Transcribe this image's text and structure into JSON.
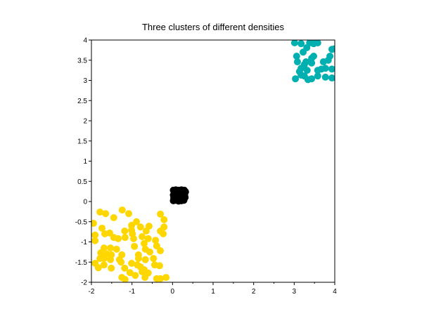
{
  "chart_data": {
    "type": "scatter",
    "title": "Three clusters of different densities",
    "xlabel": "",
    "ylabel": "",
    "xlim": [
      -2,
      4
    ],
    "ylim": [
      -2,
      4
    ],
    "xticks": [
      "-2",
      "-1",
      "0",
      "1",
      "2",
      "3",
      "4"
    ],
    "yticks": [
      "-2",
      "-1.5",
      "-1",
      "-0.5",
      "0",
      "0.5",
      "1",
      "1.5",
      "2",
      "2.5",
      "3",
      "3.5",
      "4"
    ],
    "grid": false,
    "series": [
      {
        "color": "#ffd700",
        "points": [
          [
            -1.79,
            -0.26
          ],
          [
            -1.65,
            -0.3
          ],
          [
            -1.45,
            -0.4
          ],
          [
            -1.24,
            -0.21
          ],
          [
            -1.08,
            -0.3
          ],
          [
            -0.89,
            -0.5
          ],
          [
            -0.3,
            -0.31
          ],
          [
            -0.21,
            -0.45
          ],
          [
            -1.95,
            -0.54
          ],
          [
            -1.74,
            -0.66
          ],
          [
            -1.67,
            -0.8
          ],
          [
            -1.55,
            -0.78
          ],
          [
            -1.18,
            -0.73
          ],
          [
            -1.01,
            -0.59
          ],
          [
            -1.01,
            -0.71
          ],
          [
            -0.79,
            -0.63
          ],
          [
            -0.58,
            -0.61
          ],
          [
            -0.65,
            -0.73
          ],
          [
            -0.3,
            -0.73
          ],
          [
            -0.21,
            -0.63
          ],
          [
            -1.91,
            -0.83
          ],
          [
            -1.45,
            -0.89
          ],
          [
            -1.34,
            -0.92
          ],
          [
            -1.17,
            -0.89
          ],
          [
            -0.99,
            -0.8
          ],
          [
            -0.96,
            -0.92
          ],
          [
            -0.75,
            -0.87
          ],
          [
            -0.6,
            -0.92
          ],
          [
            -0.42,
            -0.96
          ],
          [
            -0.23,
            -0.8
          ],
          [
            -1.91,
            -0.97
          ],
          [
            -1.69,
            -1.15
          ],
          [
            -1.53,
            -1.15
          ],
          [
            -1.38,
            -1.18
          ],
          [
            -0.94,
            -1.11
          ],
          [
            -0.7,
            -1.04
          ],
          [
            -0.67,
            -1.18
          ],
          [
            -0.39,
            -1.1
          ],
          [
            -0.3,
            -1.22
          ],
          [
            -1.77,
            -1.27
          ],
          [
            -1.62,
            -1.3
          ],
          [
            -1.51,
            -1.32
          ],
          [
            -1.25,
            -1.32
          ],
          [
            -0.84,
            -1.32
          ],
          [
            -0.56,
            -1.25
          ],
          [
            -1.79,
            -1.41
          ],
          [
            -1.69,
            -1.41
          ],
          [
            -1.53,
            -1.44
          ],
          [
            -1.31,
            -1.44
          ],
          [
            -0.84,
            -1.41
          ],
          [
            -0.67,
            -1.44
          ],
          [
            -0.47,
            -1.41
          ],
          [
            -1.91,
            -1.53
          ],
          [
            -1.69,
            -1.57
          ],
          [
            -1.27,
            -1.5
          ],
          [
            -1.01,
            -1.53
          ],
          [
            -0.87,
            -1.57
          ],
          [
            -0.44,
            -1.57
          ],
          [
            -0.32,
            -1.59
          ],
          [
            -1.83,
            -1.64
          ],
          [
            -1.51,
            -1.65
          ],
          [
            -1.18,
            -1.65
          ],
          [
            -0.79,
            -1.62
          ],
          [
            -0.7,
            -1.69
          ],
          [
            -1.05,
            -1.76
          ],
          [
            -0.92,
            -1.83
          ],
          [
            -0.75,
            -1.74
          ],
          [
            -0.6,
            -1.77
          ],
          [
            -0.68,
            -1.88
          ],
          [
            -1.25,
            -1.88
          ],
          [
            -1.17,
            -1.93
          ],
          [
            -0.39,
            -1.91
          ],
          [
            -0.3,
            -1.91
          ],
          [
            -0.16,
            -1.88
          ]
        ]
      },
      {
        "color": "#00b0b0",
        "points": [
          [
            3.01,
            3.93
          ],
          [
            3.17,
            3.91
          ],
          [
            3.31,
            3.81
          ],
          [
            3.38,
            3.93
          ],
          [
            3.48,
            3.91
          ],
          [
            3.58,
            3.93
          ],
          [
            3.93,
            3.77
          ],
          [
            3.88,
            3.6
          ],
          [
            3.06,
            3.6
          ],
          [
            3.48,
            3.6
          ],
          [
            3.43,
            3.55
          ],
          [
            3.08,
            3.46
          ],
          [
            3.29,
            3.46
          ],
          [
            3.43,
            3.43
          ],
          [
            3.72,
            3.46
          ],
          [
            3.84,
            3.5
          ],
          [
            3.17,
            3.3
          ],
          [
            3.25,
            3.39
          ],
          [
            3.13,
            3.22
          ],
          [
            3.32,
            3.25
          ],
          [
            3.58,
            3.25
          ],
          [
            3.67,
            3.28
          ],
          [
            3.77,
            3.3
          ],
          [
            3.93,
            3.28
          ],
          [
            3.17,
            3.13
          ],
          [
            3.25,
            3.11
          ],
          [
            3.43,
            3.04
          ],
          [
            3.58,
            3.11
          ],
          [
            3.77,
            3.08
          ],
          [
            3.93,
            3.06
          ],
          [
            3.03,
            3.04
          ],
          [
            3.34,
            3.02
          ],
          [
            3.99,
            3.78
          ],
          [
            3.22,
            3.7
          ]
        ]
      },
      {
        "color": "#000000",
        "points": [
          [
            0.02,
            0.02
          ],
          [
            0.08,
            0.03
          ],
          [
            0.15,
            0.01
          ],
          [
            0.22,
            0.02
          ],
          [
            0.28,
            0.03
          ],
          [
            0.03,
            0.09
          ],
          [
            0.1,
            0.08
          ],
          [
            0.18,
            0.1
          ],
          [
            0.25,
            0.08
          ],
          [
            0.31,
            0.1
          ],
          [
            0.02,
            0.16
          ],
          [
            0.09,
            0.15
          ],
          [
            0.16,
            0.17
          ],
          [
            0.23,
            0.15
          ],
          [
            0.3,
            0.16
          ],
          [
            0.04,
            0.23
          ],
          [
            0.11,
            0.22
          ],
          [
            0.19,
            0.24
          ],
          [
            0.26,
            0.22
          ],
          [
            0.32,
            0.24
          ],
          [
            0.02,
            0.28
          ],
          [
            0.08,
            0.29
          ],
          [
            0.15,
            0.28
          ],
          [
            0.22,
            0.29
          ],
          [
            0.29,
            0.28
          ],
          [
            0.06,
            0.05
          ],
          [
            0.2,
            0.06
          ],
          [
            0.13,
            0.2
          ],
          [
            0.27,
            0.19
          ],
          [
            0.05,
            0.12
          ]
        ]
      }
    ]
  }
}
